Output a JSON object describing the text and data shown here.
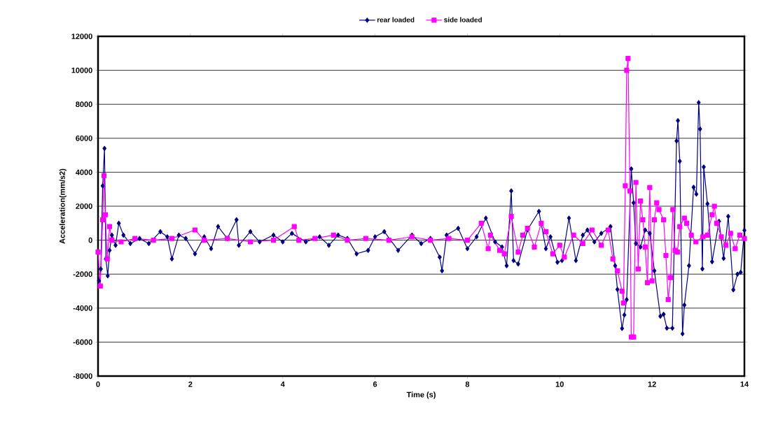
{
  "chart_data": {
    "type": "line",
    "xlabel": "Time (s)",
    "ylabel": "Acceleration(mm/s2)",
    "xlim": [
      0,
      14
    ],
    "ylim": [
      -8000,
      12000
    ],
    "xticks": [
      0,
      2,
      4,
      6,
      8,
      10,
      12,
      14
    ],
    "yticks": [
      -8000,
      -6000,
      -4000,
      -2000,
      0,
      2000,
      4000,
      6000,
      8000,
      10000,
      12000
    ],
    "grid": "y",
    "legend": "top",
    "line_style": "solid",
    "series": [
      {
        "name": "rear loaded",
        "color": "#000080",
        "marker": "diamond",
        "x": [
          0.02,
          0.06,
          0.1,
          0.14,
          0.17,
          0.21,
          0.25,
          0.3,
          0.38,
          0.45,
          0.55,
          0.7,
          0.9,
          1.1,
          1.35,
          1.5,
          1.6,
          1.75,
          1.9,
          2.1,
          2.3,
          2.45,
          2.6,
          2.8,
          3.0,
          3.05,
          3.3,
          3.5,
          3.8,
          4.0,
          4.2,
          4.5,
          4.8,
          5.0,
          5.2,
          5.4,
          5.6,
          5.85,
          6.0,
          6.2,
          6.5,
          6.8,
          7.0,
          7.2,
          7.4,
          7.45,
          7.55,
          7.8,
          8.0,
          8.2,
          8.4,
          8.6,
          8.75,
          8.85,
          8.95,
          9.0,
          9.1,
          9.3,
          9.55,
          9.7,
          9.8,
          9.95,
          10.05,
          10.2,
          10.35,
          10.5,
          10.6,
          10.75,
          10.9,
          11.1,
          11.2,
          11.25,
          11.35,
          11.4,
          11.45,
          11.55,
          11.6,
          11.65,
          11.75,
          11.85,
          11.95,
          12.05,
          12.18,
          12.25,
          12.32,
          12.44,
          12.53,
          12.56,
          12.6,
          12.66,
          12.7,
          12.8,
          12.9,
          12.96,
          13.01,
          13.04,
          13.09,
          13.12,
          13.2,
          13.3,
          13.45,
          13.55,
          13.65,
          13.76,
          13.85,
          13.92,
          14.0
        ],
        "values": [
          -2400,
          -1700,
          3200,
          5400,
          -1100,
          -2100,
          -600,
          300,
          -300,
          1000,
          300,
          -200,
          100,
          -200,
          500,
          200,
          -1100,
          300,
          100,
          -800,
          200,
          -500,
          800,
          100,
          1200,
          -300,
          500,
          -100,
          300,
          -100,
          400,
          -100,
          200,
          -300,
          300,
          100,
          -800,
          -600,
          200,
          500,
          -600,
          300,
          -200,
          100,
          -1000,
          -1800,
          300,
          700,
          -500,
          200,
          1300,
          -100,
          -400,
          -1500,
          2900,
          -1200,
          -1400,
          600,
          1700,
          -500,
          200,
          -1300,
          -1200,
          1300,
          -1200,
          300,
          600,
          -100,
          400,
          800,
          -1500,
          -2900,
          -5200,
          -4400,
          -3500,
          4200,
          2200,
          -200,
          -400,
          600,
          400,
          -1800,
          -4480,
          -4360,
          -5180,
          -5180,
          5840,
          7040,
          4650,
          -5510,
          -3820,
          -1500,
          3120,
          2710,
          8100,
          6540,
          -1690,
          4310,
          2140,
          -1270,
          1110,
          -1070,
          1400,
          -2920,
          -2000,
          -1890,
          580
        ]
      },
      {
        "name": "side loaded",
        "color": "#ff00ff",
        "marker": "square",
        "x": [
          0.0,
          0.05,
          0.1,
          0.13,
          0.16,
          0.2,
          0.25,
          0.3,
          0.5,
          0.8,
          1.2,
          1.6,
          2.1,
          2.3,
          2.8,
          3.3,
          3.8,
          4.25,
          4.35,
          4.7,
          5.1,
          5.4,
          5.8,
          6.3,
          6.8,
          7.2,
          7.6,
          8.0,
          8.3,
          8.45,
          8.5,
          8.7,
          8.8,
          8.95,
          9.1,
          9.2,
          9.3,
          9.45,
          9.6,
          9.7,
          9.85,
          10.0,
          10.1,
          10.3,
          10.5,
          10.7,
          10.9,
          11.05,
          11.15,
          11.25,
          11.35,
          11.38,
          11.42,
          11.45,
          11.48,
          11.52,
          11.55,
          11.6,
          11.65,
          11.7,
          11.75,
          11.8,
          11.85,
          11.9,
          11.95,
          12.0,
          12.05,
          12.1,
          12.15,
          12.25,
          12.3,
          12.35,
          12.4,
          12.45,
          12.5,
          12.55,
          12.6,
          12.7,
          12.75,
          12.85,
          12.95,
          13.1,
          13.2,
          13.3,
          13.35,
          13.4,
          13.5,
          13.6,
          13.7,
          13.8,
          13.9,
          14.0
        ],
        "values": [
          -700,
          -2700,
          1200,
          3800,
          1500,
          -1100,
          800,
          0,
          -100,
          100,
          0,
          100,
          600,
          0,
          100,
          -100,
          0,
          800,
          0,
          100,
          300,
          0,
          100,
          0,
          200,
          0,
          100,
          0,
          1000,
          -500,
          300,
          -600,
          -800,
          1400,
          -700,
          300,
          700,
          -400,
          1000,
          500,
          -800,
          -300,
          -1000,
          300,
          -200,
          600,
          -300,
          600,
          -1100,
          -1800,
          -3000,
          -3700,
          3200,
          10000,
          10700,
          2900,
          -5700,
          -5700,
          3400,
          -1700,
          2300,
          1200,
          -400,
          -2500,
          3100,
          -2400,
          1200,
          2200,
          1800,
          1200,
          -900,
          -3500,
          -2200,
          1800,
          -600,
          -700,
          800,
          1300,
          1000,
          300,
          -100,
          200,
          300,
          1500,
          2000,
          1000,
          200,
          -300,
          400,
          -500,
          300,
          100
        ]
      }
    ]
  }
}
